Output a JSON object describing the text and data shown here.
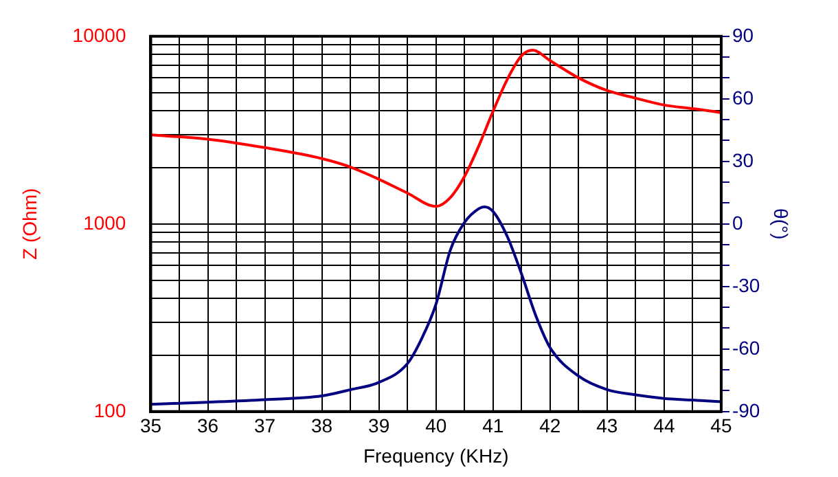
{
  "chart_data": {
    "type": "line",
    "xlabel": "Frequency (KHz)",
    "ylabel": "Z (Ohm)",
    "y2label": "θ(°)",
    "log": "y",
    "grid": true,
    "legend": false,
    "marker": "none",
    "line_style": "solid",
    "xlim": [
      35,
      45
    ],
    "xticks": [
      35,
      {
        "value": 35.5,
        "label": null
      },
      36,
      {
        "value": 36.5,
        "label": null
      },
      37,
      {
        "value": 37.5,
        "label": null
      },
      38,
      {
        "value": 38.5,
        "label": null
      },
      39,
      {
        "value": 39.5,
        "label": null
      },
      40,
      {
        "value": 40.5,
        "label": null
      },
      41,
      {
        "value": 41.5,
        "label": null
      },
      42,
      {
        "value": 42.5,
        "label": null
      },
      43,
      {
        "value": 43.5,
        "label": null
      },
      44,
      {
        "value": 44.5,
        "label": null
      },
      45
    ],
    "ylim": [
      100,
      10000
    ],
    "yticks": [
      100,
      {
        "value": 200,
        "label": null
      },
      {
        "value": 300,
        "label": null
      },
      {
        "value": 400,
        "label": null
      },
      {
        "value": 500,
        "label": null
      },
      {
        "value": 600,
        "label": null
      },
      {
        "value": 700,
        "label": null
      },
      {
        "value": 800,
        "label": null
      },
      {
        "value": 900,
        "label": null
      },
      1000,
      {
        "value": 2000,
        "label": null
      },
      {
        "value": 3000,
        "label": null
      },
      {
        "value": 4000,
        "label": null
      },
      {
        "value": 5000,
        "label": null
      },
      {
        "value": 6000,
        "label": null
      },
      {
        "value": 7000,
        "label": null
      },
      {
        "value": 8000,
        "label": null
      },
      {
        "value": 9000,
        "label": null
      },
      10000
    ],
    "y2lim": [
      -90,
      90
    ],
    "y2ticks": [
      -90,
      {
        "value": -80,
        "label": null
      },
      {
        "value": -70,
        "label": null
      },
      -60,
      {
        "value": -50,
        "label": null
      },
      {
        "value": -40,
        "label": null
      },
      -30,
      {
        "value": -20,
        "label": null
      },
      {
        "value": -10,
        "label": null
      },
      0,
      {
        "value": 10,
        "label": null
      },
      {
        "value": 20,
        "label": null
      },
      30,
      {
        "value": 40,
        "label": null
      },
      {
        "value": 50,
        "label": null
      },
      60,
      {
        "value": 70,
        "label": null
      },
      {
        "value": 80,
        "label": null
      },
      90
    ],
    "series": [
      {
        "color": "#ff0000",
        "x": [
          35,
          36,
          37,
          38,
          38.5,
          39,
          39.5,
          40,
          40.25,
          40.5,
          40.75,
          41,
          41.25,
          41.5,
          41.7,
          42,
          42.5,
          43,
          43.5,
          44,
          44.5,
          45
        ],
        "values": [
          2980,
          2830,
          2550,
          2230,
          2010,
          1730,
          1460,
          1240,
          1380,
          1790,
          2600,
          3980,
          5890,
          7870,
          8430,
          7420,
          6000,
          5140,
          4680,
          4300,
          4120,
          3920
        ]
      },
      {
        "color": "#000080",
        "axis": "y2",
        "x": [
          35,
          36,
          37,
          38,
          38.5,
          39,
          39.5,
          39.75,
          40,
          40.25,
          40.5,
          40.75,
          40.85,
          41,
          41.25,
          41.5,
          41.75,
          42,
          42.5,
          43,
          43.5,
          44,
          44.5,
          45
        ],
        "values": [
          -86.5,
          -85.5,
          -84.3,
          -82.5,
          -79.5,
          -76,
          -67,
          -55,
          -38.5,
          -12.7,
          0.7,
          7.3,
          8.2,
          6,
          -6,
          -24,
          -44,
          -59.3,
          -73,
          -79.5,
          -82,
          -83.7,
          -84.5,
          -85.3
        ]
      }
    ]
  }
}
